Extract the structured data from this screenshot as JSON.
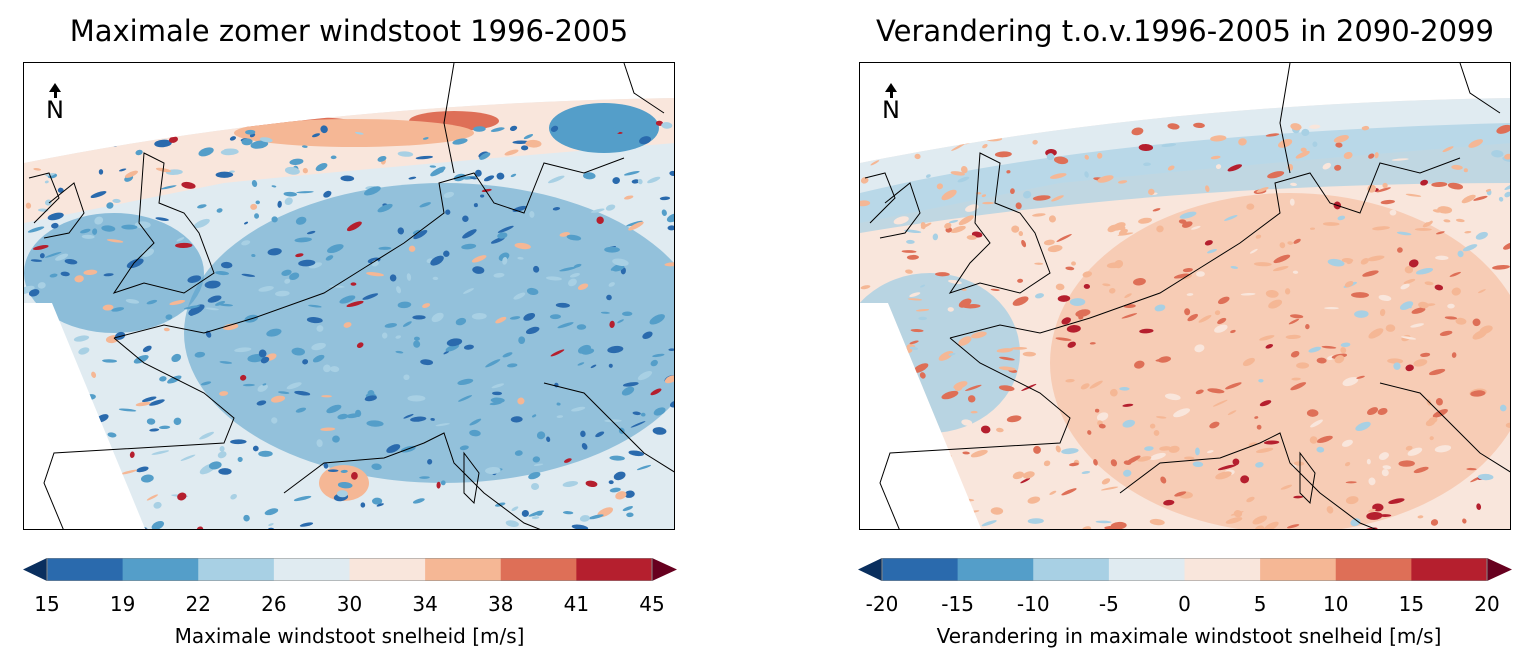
{
  "panels": [
    {
      "title": "Maximale zomer windstoot 1996-2005",
      "north_label": "N",
      "colorbar": {
        "ticks": [
          "15",
          "19",
          "22",
          "26",
          "30",
          "34",
          "38",
          "41",
          "45"
        ],
        "label": "Maximale windstoot snelheid [m/s]",
        "colors": [
          "#2a6aad",
          "#549ec9",
          "#a8d0e4",
          "#e0ebf1",
          "#f9e6dc",
          "#f5b795",
          "#de6f57",
          "#b51f2e"
        ],
        "under_color": "#0a2f5e",
        "over_color": "#67001f",
        "extend": "both"
      },
      "base_class": 3
    },
    {
      "title": "Verandering t.o.v.1996-2005 in 2090-2099",
      "north_label": "N",
      "colorbar": {
        "ticks": [
          "-20",
          "-15",
          "-10",
          "-5",
          "0",
          "5",
          "10",
          "15",
          "20"
        ],
        "label": "Verandering in maximale windstoot snelheid [m/s]",
        "colors": [
          "#2a6aad",
          "#549ec9",
          "#a8d0e4",
          "#e0ebf1",
          "#f9e6dc",
          "#f5b795",
          "#de6f57",
          "#b51f2e"
        ],
        "under_color": "#0a2f5e",
        "over_color": "#67001f",
        "extend": "both"
      },
      "base_class": 4
    }
  ]
}
